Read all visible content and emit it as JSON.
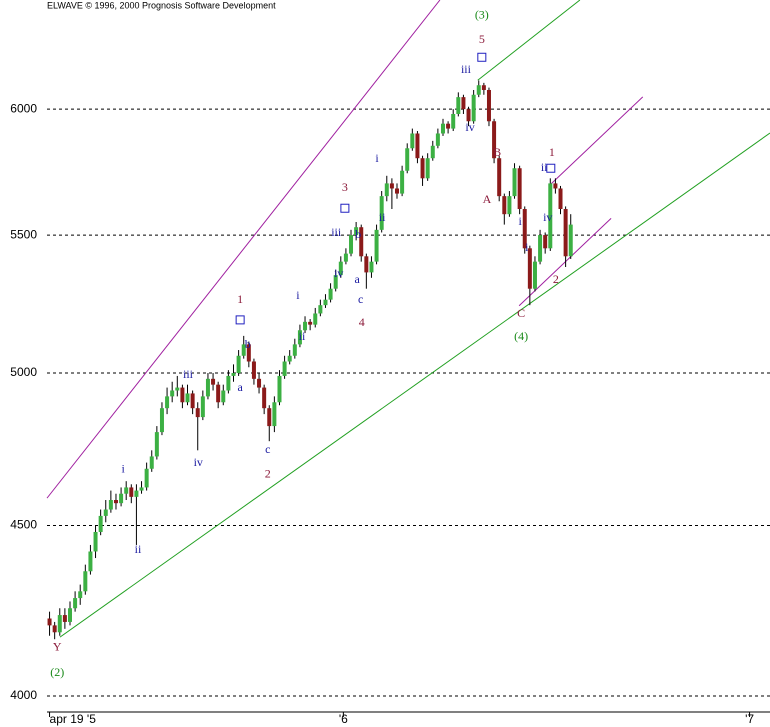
{
  "chart_data": {
    "type": "candlestick",
    "title": "ELWAVE © 1996, 2000 Prognosis Software Development",
    "ylog": true,
    "ylim": [
      3956,
      6470
    ],
    "yticks": [
      4000,
      4500,
      5000,
      5500,
      6000
    ],
    "xlim": [
      -0.5,
      141
    ],
    "xticks": [
      {
        "value": 0,
        "label": "apr 19 '5"
      },
      {
        "value": 57.5,
        "label": "'6"
      },
      {
        "value": 137,
        "label": "'7"
      }
    ],
    "grid": true,
    "up_color": "#3cb043",
    "down_color": "#8b1a1a",
    "values": [
      [
        4220,
        4240,
        4170,
        4200
      ],
      [
        4200,
        4210,
        4160,
        4180
      ],
      [
        4180,
        4250,
        4170,
        4230
      ],
      [
        4230,
        4250,
        4190,
        4210
      ],
      [
        4210,
        4270,
        4200,
        4250
      ],
      [
        4250,
        4300,
        4240,
        4280
      ],
      [
        4280,
        4320,
        4260,
        4300
      ],
      [
        4300,
        4380,
        4290,
        4360
      ],
      [
        4360,
        4440,
        4350,
        4420
      ],
      [
        4420,
        4500,
        4400,
        4480
      ],
      [
        4480,
        4550,
        4470,
        4530
      ],
      [
        4530,
        4580,
        4510,
        4550
      ],
      [
        4550,
        4610,
        4540,
        4580
      ],
      [
        4580,
        4600,
        4550,
        4570
      ],
      [
        4570,
        4620,
        4560,
        4600
      ],
      [
        4600,
        4640,
        4580,
        4620
      ],
      [
        4620,
        4630,
        4570,
        4590
      ],
      [
        4590,
        4630,
        4440,
        4610
      ],
      [
        4610,
        4640,
        4600,
        4620
      ],
      [
        4620,
        4700,
        4610,
        4680
      ],
      [
        4680,
        4740,
        4670,
        4720
      ],
      [
        4720,
        4820,
        4710,
        4800
      ],
      [
        4800,
        4900,
        4790,
        4880
      ],
      [
        4880,
        4950,
        4860,
        4920
      ],
      [
        4920,
        4970,
        4900,
        4940
      ],
      [
        4940,
        4990,
        4920,
        4950
      ],
      [
        4950,
        4960,
        4880,
        4900
      ],
      [
        4900,
        4960,
        4890,
        4930
      ],
      [
        4930,
        4940,
        4860,
        4880
      ],
      [
        4880,
        4900,
        4740,
        4850
      ],
      [
        4850,
        4940,
        4840,
        4920
      ],
      [
        4920,
        5000,
        4910,
        4980
      ],
      [
        4980,
        5000,
        4940,
        4960
      ],
      [
        4960,
        4970,
        4880,
        4900
      ],
      [
        4900,
        4960,
        4890,
        4940
      ],
      [
        4940,
        5010,
        4930,
        4990
      ],
      [
        4990,
        5030,
        4970,
        5000
      ],
      [
        5000,
        5080,
        4990,
        5060
      ],
      [
        5060,
        5130,
        5050,
        5100
      ],
      [
        5100,
        5110,
        5020,
        5040
      ],
      [
        5040,
        5050,
        4960,
        4980
      ],
      [
        4980,
        5000,
        4930,
        4950
      ],
      [
        4950,
        4960,
        4860,
        4880
      ],
      [
        4880,
        4890,
        4770,
        4820
      ],
      [
        4820,
        4920,
        4800,
        4900
      ],
      [
        4900,
        5010,
        4890,
        4990
      ],
      [
        4990,
        5060,
        4980,
        5040
      ],
      [
        5040,
        5080,
        5030,
        5060
      ],
      [
        5060,
        5120,
        5050,
        5100
      ],
      [
        5100,
        5170,
        5090,
        5150
      ],
      [
        5150,
        5200,
        5140,
        5180
      ],
      [
        5180,
        5190,
        5150,
        5170
      ],
      [
        5170,
        5230,
        5160,
        5210
      ],
      [
        5210,
        5260,
        5200,
        5240
      ],
      [
        5240,
        5280,
        5230,
        5260
      ],
      [
        5260,
        5320,
        5250,
        5300
      ],
      [
        5300,
        5370,
        5290,
        5350
      ],
      [
        5350,
        5420,
        5340,
        5400
      ],
      [
        5400,
        5450,
        5390,
        5430
      ],
      [
        5430,
        5520,
        5420,
        5500
      ],
      [
        5500,
        5550,
        5480,
        5530
      ],
      [
        5530,
        5540,
        5400,
        5420
      ],
      [
        5420,
        5430,
        5300,
        5360
      ],
      [
        5360,
        5420,
        5340,
        5400
      ],
      [
        5400,
        5540,
        5390,
        5520
      ],
      [
        5520,
        5670,
        5510,
        5650
      ],
      [
        5650,
        5730,
        5630,
        5700
      ],
      [
        5700,
        5720,
        5600,
        5680
      ],
      [
        5680,
        5700,
        5640,
        5660
      ],
      [
        5660,
        5770,
        5650,
        5750
      ],
      [
        5750,
        5860,
        5740,
        5840
      ],
      [
        5840,
        5920,
        5830,
        5900
      ],
      [
        5900,
        5910,
        5780,
        5800
      ],
      [
        5800,
        5810,
        5690,
        5720
      ],
      [
        5720,
        5820,
        5710,
        5800
      ],
      [
        5800,
        5870,
        5790,
        5850
      ],
      [
        5850,
        5920,
        5840,
        5900
      ],
      [
        5900,
        5960,
        5890,
        5940
      ],
      [
        5940,
        5950,
        5900,
        5920
      ],
      [
        5920,
        6000,
        5910,
        5980
      ],
      [
        5980,
        6070,
        5970,
        6050
      ],
      [
        6050,
        6060,
        5980,
        6000
      ],
      [
        6000,
        6010,
        5930,
        5950
      ],
      [
        5950,
        6080,
        5940,
        6060
      ],
      [
        6060,
        6120,
        6050,
        6100
      ],
      [
        6100,
        6110,
        6060,
        6080
      ],
      [
        6080,
        6090,
        5930,
        5950
      ],
      [
        5950,
        5960,
        5780,
        5800
      ],
      [
        5800,
        5810,
        5630,
        5650
      ],
      [
        5650,
        5660,
        5540,
        5580
      ],
      [
        5580,
        5670,
        5570,
        5650
      ],
      [
        5650,
        5780,
        5640,
        5760
      ],
      [
        5760,
        5770,
        5580,
        5600
      ],
      [
        5600,
        5610,
        5430,
        5450
      ],
      [
        5450,
        5460,
        5240,
        5300
      ],
      [
        5300,
        5420,
        5290,
        5400
      ],
      [
        5400,
        5520,
        5390,
        5500
      ],
      [
        5500,
        5510,
        5430,
        5450
      ],
      [
        5450,
        5720,
        5440,
        5700
      ],
      [
        5700,
        5720,
        5660,
        5680
      ],
      [
        5680,
        5690,
        5580,
        5600
      ],
      [
        5600,
        5610,
        5380,
        5420
      ],
      [
        5420,
        5580,
        5410,
        5540
      ]
    ],
    "trendlines": [
      {
        "color": "#a020a0",
        "x": [
          -0.5,
          76.4
        ],
        "y": [
          4586,
          6470
        ]
      },
      {
        "color": "#22a022",
        "x": [
          2.04,
          141
        ],
        "y": [
          4166,
          5902
        ]
      },
      {
        "color": "#22a022",
        "x": [
          83.8,
          103.8
        ],
        "y": [
          6121,
          6470
        ]
      },
      {
        "color": "#a020a0",
        "x": [
          97.9,
          116.1
        ],
        "y": [
          5693,
          6051
        ]
      },
      {
        "color": "#a020a0",
        "x": [
          91.9,
          109.9
        ],
        "y": [
          5238,
          5564
        ]
      }
    ],
    "boxes": {
      "color": "#2020c0",
      "x": [
        84.6,
        98.1,
        57.8,
        37.3
      ],
      "y": [
        6219,
        5760,
        5603,
        5187
      ]
    },
    "annotations": [
      {
        "text": "(3)",
        "x": 84.6,
        "y": 6401,
        "color": "#1a8a1a"
      },
      {
        "text": "5",
        "x": 84.6,
        "y": 6292,
        "color": "#8b1a3a"
      },
      {
        "text": "iii",
        "x": 81.5,
        "y": 6163,
        "color": "#1a1aa0"
      },
      {
        "text": "iv",
        "x": 82.3,
        "y": 5921,
        "color": "#1a1aa0"
      },
      {
        "text": "B",
        "x": 87.6,
        "y": 5820,
        "color": "#8b1a3a"
      },
      {
        "text": "A",
        "x": 85.6,
        "y": 5634,
        "color": "#8b1a3a"
      },
      {
        "text": "1",
        "x": 98.3,
        "y": 5820,
        "color": "#8b1a3a"
      },
      {
        "text": "ii",
        "x": 96.8,
        "y": 5760,
        "color": "#1a1aa0"
      },
      {
        "text": "iv",
        "x": 97.5,
        "y": 5564,
        "color": "#1a1aa0"
      },
      {
        "text": "i",
        "x": 92.1,
        "y": 5549,
        "color": "#1a1aa0"
      },
      {
        "text": "i",
        "x": 93.4,
        "y": 5450,
        "color": "#1a1aa0"
      },
      {
        "text": "2",
        "x": 99.1,
        "y": 5331,
        "color": "#8b1a3a"
      },
      {
        "text": "C",
        "x": 92.3,
        "y": 5208,
        "color": "#8b1a3a"
      },
      {
        "text": "(4)",
        "x": 92.3,
        "y": 5126,
        "color": "#1a8a1a"
      },
      {
        "text": "3",
        "x": 57.8,
        "y": 5681,
        "color": "#8b1a3a"
      },
      {
        "text": "iii",
        "x": 56.1,
        "y": 5507,
        "color": "#1a1aa0"
      },
      {
        "text": "b",
        "x": 60.4,
        "y": 5500,
        "color": "#1a1aa0"
      },
      {
        "text": "iv",
        "x": 56.6,
        "y": 5353,
        "color": "#1a1aa0"
      },
      {
        "text": "a",
        "x": 60.2,
        "y": 5331,
        "color": "#1a1aa0"
      },
      {
        "text": "c",
        "x": 60.9,
        "y": 5258,
        "color": "#1a1aa0"
      },
      {
        "text": "4",
        "x": 61.1,
        "y": 5175,
        "color": "#8b1a3a"
      },
      {
        "text": "i",
        "x": 64.1,
        "y": 5796,
        "color": "#1a1aa0"
      },
      {
        "text": "ii",
        "x": 65.1,
        "y": 5564,
        "color": "#1a1aa0"
      },
      {
        "text": "i",
        "x": 48.6,
        "y": 5273,
        "color": "#1a1aa0"
      },
      {
        "text": "ii",
        "x": 49.4,
        "y": 5126,
        "color": "#1a1aa0"
      },
      {
        "text": "1",
        "x": 37.3,
        "y": 5258,
        "color": "#8b1a3a"
      },
      {
        "text": "b",
        "x": 38.8,
        "y": 5097,
        "color": "#1a1aa0"
      },
      {
        "text": "a",
        "x": 37.3,
        "y": 4948,
        "color": "#1a1aa0"
      },
      {
        "text": "c",
        "x": 42.7,
        "y": 4741,
        "color": "#1a1aa0"
      },
      {
        "text": "2",
        "x": 42.7,
        "y": 4660,
        "color": "#8b1a3a"
      },
      {
        "text": "iii",
        "x": 27.1,
        "y": 4993,
        "color": "#1a1aa0"
      },
      {
        "text": "iv",
        "x": 29.1,
        "y": 4698,
        "color": "#1a1aa0"
      },
      {
        "text": "i",
        "x": 14.4,
        "y": 4676,
        "color": "#1a1aa0"
      },
      {
        "text": "ii",
        "x": 17.3,
        "y": 4424,
        "color": "#1a1aa0"
      },
      {
        "text": "Y",
        "x": 1.5,
        "y": 4135,
        "color": "#8b1a3a"
      },
      {
        "text": "(2)",
        "x": 1.5,
        "y": 4064,
        "color": "#1a8a1a"
      }
    ]
  }
}
